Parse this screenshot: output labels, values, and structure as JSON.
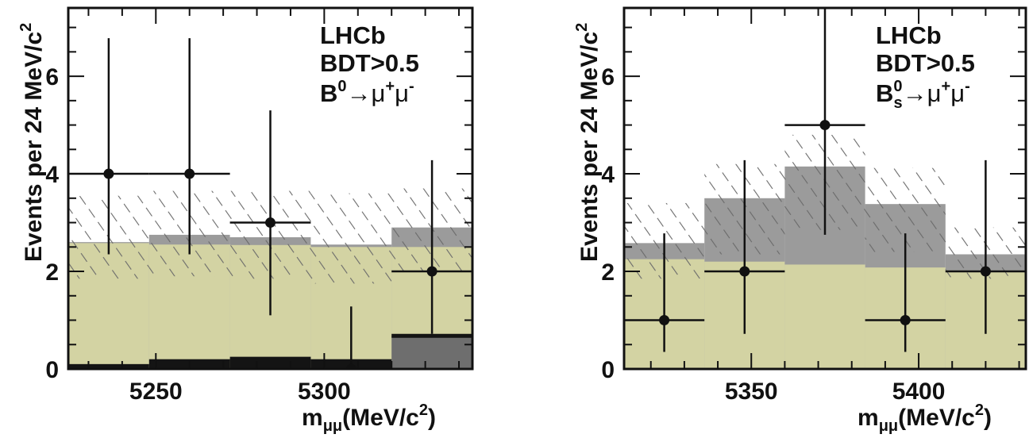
{
  "chart_data": [
    {
      "type": "bar",
      "panel": "left",
      "xlabel_main": "m",
      "xlabel_sub": "μμ",
      "xlabel_tail_open": "(MeV/c",
      "xlabel_sup": "2",
      "xlabel_tail_close": ")",
      "ylabel_main": "Events per 24 MeV/c",
      "ylabel_sup": "2",
      "xlim": [
        5224,
        5344
      ],
      "ylim": [
        0,
        7.4
      ],
      "x_ticks": [
        5250,
        5300
      ],
      "y_ticks": [
        0,
        2,
        4,
        6
      ],
      "annotations": {
        "line1": "LHCb",
        "line2": "BDT>0.5",
        "decay_B": "B",
        "decay_sup": "0",
        "decay_arrow": "→",
        "decay_mu1": "μ",
        "decay_mu1_sup": "+",
        "decay_mu2": "μ",
        "decay_mu2_sup": "-"
      },
      "bin_edges": [
        5224,
        5248,
        5272,
        5296,
        5320,
        5344
      ],
      "background_combinatorial": [
        2.58,
        2.55,
        2.54,
        2.5,
        2.5
      ],
      "background_total": [
        2.6,
        2.75,
        2.7,
        2.55,
        2.9
      ],
      "signal": [
        0.1,
        0.2,
        0.25,
        0.2,
        0.68
      ],
      "uncertainty_upper": [
        3.55,
        3.65,
        3.65,
        3.6,
        3.7
      ],
      "uncertainty_lower": [
        1.85,
        1.9,
        1.85,
        1.75,
        2.0
      ],
      "data_points": [
        {
          "x": 5236,
          "y": 4,
          "ylow": 2.35,
          "yhigh": 6.78
        },
        {
          "x": 5260,
          "y": 4,
          "ylow": 2.35,
          "yhigh": 6.78
        },
        {
          "x": 5284,
          "y": 3,
          "ylow": 1.1,
          "yhigh": 5.3
        },
        {
          "x": 5308,
          "y": 0,
          "ylow": 0,
          "yhigh": 1.28
        },
        {
          "x": 5332,
          "y": 2,
          "ylow": 0.72,
          "yhigh": 4.28
        }
      ],
      "colors": {
        "combinatorial": "#d3d3a3",
        "misid": "#9b9b9b",
        "signal": "#141414",
        "hatch": "#6a6a6a"
      }
    },
    {
      "type": "bar",
      "panel": "right",
      "xlabel_main": "m",
      "xlabel_sub": "μμ",
      "xlabel_tail_open": "(MeV/c",
      "xlabel_sup": "2",
      "xlabel_tail_close": ")",
      "ylabel_main": "Events per 24 MeV/c",
      "ylabel_sup": "2",
      "xlim": [
        5312,
        5432
      ],
      "ylim": [
        0,
        7.4
      ],
      "x_ticks": [
        5350,
        5400
      ],
      "y_ticks": [
        0,
        2,
        4,
        6
      ],
      "annotations": {
        "line1": "LHCb",
        "line2": "BDT>0.5",
        "decay_B": "B",
        "decay_sup": "0",
        "decay_sub": "s",
        "decay_arrow": "→",
        "decay_mu1": "μ",
        "decay_mu1_sup": "+",
        "decay_mu2": "μ",
        "decay_mu2_sup": "-"
      },
      "bin_edges": [
        5312,
        5336,
        5360,
        5384,
        5408,
        5432
      ],
      "background_combinatorial": [
        2.25,
        2.2,
        2.14,
        2.08,
        2.02
      ],
      "background_total": [
        2.58,
        3.5,
        4.15,
        3.38,
        2.35
      ],
      "uncertainty_upper": [
        3.4,
        4.2,
        4.8,
        4.12,
        2.9
      ],
      "uncertainty_lower": [
        1.85,
        2.35,
        2.85,
        2.4,
        1.85
      ],
      "data_points": [
        {
          "x": 5324,
          "y": 1,
          "ylow": 0.35,
          "yhigh": 2.78
        },
        {
          "x": 5348,
          "y": 2,
          "ylow": 0.72,
          "yhigh": 4.28
        },
        {
          "x": 5372,
          "y": 5,
          "ylow": 2.75,
          "yhigh": 7.4
        },
        {
          "x": 5396,
          "y": 1,
          "ylow": 0.35,
          "yhigh": 2.78
        },
        {
          "x": 5420,
          "y": 2,
          "ylow": 0.72,
          "yhigh": 4.28
        }
      ],
      "colors": {
        "combinatorial": "#d3d3a3",
        "misid": "#9b9b9b",
        "hatch": "#6a6a6a"
      }
    }
  ]
}
